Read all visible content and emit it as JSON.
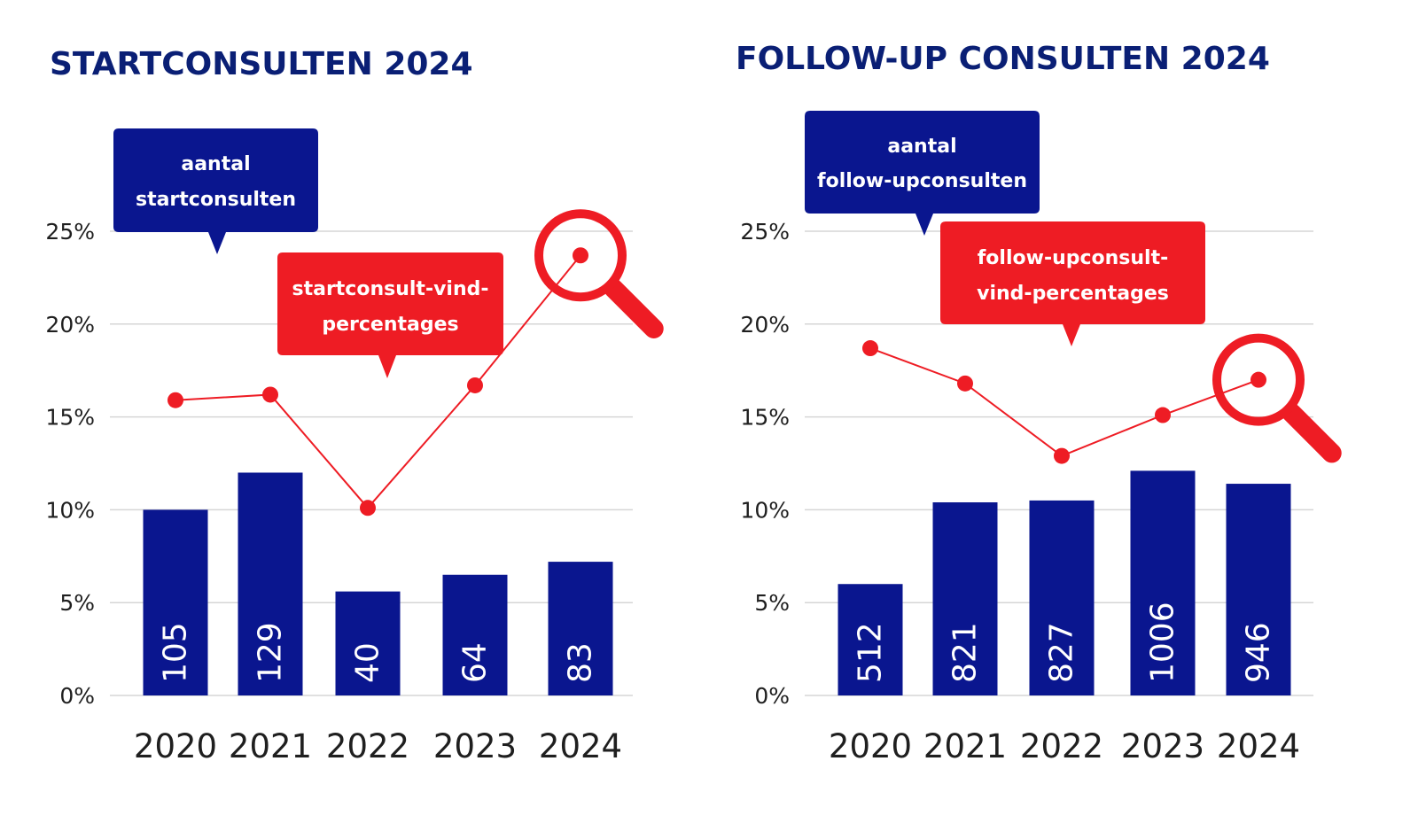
{
  "colors": {
    "bar": "#0a168f",
    "line": "#ee1c24",
    "title": "#0a1f75",
    "grid": "#d6d6d6",
    "text": "#1f1f1f"
  },
  "chart_data": [
    {
      "type": "bar+line",
      "title": "STARTCONSULTEN 2024",
      "categories": [
        "2020",
        "2021",
        "2022",
        "2023",
        "2024"
      ],
      "y_ticks": [
        "0%",
        "5%",
        "10%",
        "15%",
        "20%",
        "25%"
      ],
      "ylim": [
        0,
        25
      ],
      "grid": true,
      "series": [
        {
          "name": "aantal startconsulten",
          "kind": "bar",
          "labels": [
            "105",
            "129",
            "40",
            "64",
            "83"
          ],
          "heights_pct": [
            10.0,
            12.0,
            5.6,
            6.5,
            7.2
          ]
        },
        {
          "name": "startconsult-vind-percentages",
          "kind": "line",
          "values": [
            15.9,
            16.2,
            10.1,
            16.7,
            23.7
          ]
        }
      ],
      "callouts": {
        "bar": [
          "aantal",
          "startconsulten"
        ],
        "line": [
          "startconsult-vind-",
          "percentages"
        ]
      },
      "highlight_index": 4
    },
    {
      "type": "bar+line",
      "title": "FOLLOW-UP CONSULTEN 2024",
      "categories": [
        "2020",
        "2021",
        "2022",
        "2023",
        "2024"
      ],
      "y_ticks": [
        "0%",
        "5%",
        "10%",
        "15%",
        "20%",
        "25%"
      ],
      "ylim": [
        0,
        25
      ],
      "grid": true,
      "series": [
        {
          "name": "aantal follow-upconsulten",
          "kind": "bar",
          "labels": [
            "512",
            "821",
            "827",
            "1006",
            "946"
          ],
          "heights_pct": [
            6.0,
            10.4,
            10.5,
            12.1,
            11.4
          ]
        },
        {
          "name": "follow-upconsult-vind-percentages",
          "kind": "line",
          "values": [
            18.7,
            16.8,
            12.9,
            15.1,
            17.0
          ]
        }
      ],
      "callouts": {
        "bar": [
          "aantal",
          "follow-upconsulten"
        ],
        "line": [
          "follow-upconsult-",
          "vind-percentages"
        ]
      },
      "highlight_index": 4
    }
  ]
}
